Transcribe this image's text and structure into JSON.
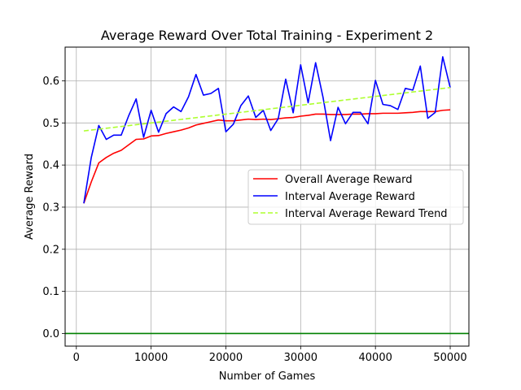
{
  "chart_data": {
    "type": "line",
    "title": "Average Reward Over Total Training - Experiment 2",
    "xlabel": "Number of Games",
    "ylabel": "Average Reward",
    "xlim": [
      -1500,
      52500
    ],
    "ylim": [
      -0.03,
      0.68
    ],
    "xticks": [
      0,
      10000,
      20000,
      30000,
      40000,
      50000
    ],
    "yticks": [
      0.0,
      0.1,
      0.2,
      0.3,
      0.4,
      0.5,
      0.6
    ],
    "xtick_labels": [
      "0",
      "10000",
      "20000",
      "30000",
      "40000",
      "50000"
    ],
    "ytick_labels": [
      "0.0",
      "0.1",
      "0.2",
      "0.3",
      "0.4",
      "0.5",
      "0.6"
    ],
    "grid": true,
    "legend_position": "center-right",
    "horizontal_line": {
      "y": 0.0,
      "color": "#008000"
    },
    "x": [
      1000,
      2000,
      3000,
      4000,
      5000,
      6000,
      7000,
      8000,
      9000,
      10000,
      11000,
      12000,
      13000,
      14000,
      15000,
      16000,
      17000,
      18000,
      19000,
      20000,
      21000,
      22000,
      23000,
      24000,
      25000,
      26000,
      27000,
      28000,
      29000,
      30000,
      31000,
      32000,
      33000,
      34000,
      35000,
      36000,
      37000,
      38000,
      39000,
      40000,
      41000,
      42000,
      43000,
      44000,
      45000,
      46000,
      47000,
      48000,
      49000,
      50000
    ],
    "series": [
      {
        "name": "Overall Average Reward",
        "color": "#ff0000",
        "style": "solid",
        "values": [
          0.309,
          0.36,
          0.405,
          0.418,
          0.428,
          0.435,
          0.448,
          0.461,
          0.462,
          0.469,
          0.47,
          0.475,
          0.479,
          0.483,
          0.488,
          0.495,
          0.499,
          0.503,
          0.507,
          0.505,
          0.505,
          0.507,
          0.509,
          0.508,
          0.509,
          0.508,
          0.51,
          0.512,
          0.513,
          0.516,
          0.518,
          0.521,
          0.521,
          0.52,
          0.52,
          0.52,
          0.521,
          0.521,
          0.522,
          0.522,
          0.523,
          0.523,
          0.523,
          0.524,
          0.525,
          0.527,
          0.527,
          0.527,
          0.53,
          0.531
        ]
      },
      {
        "name": "Interval Average Reward",
        "color": "#0000ff",
        "style": "solid",
        "values": [
          0.309,
          0.418,
          0.494,
          0.461,
          0.471,
          0.471,
          0.517,
          0.557,
          0.466,
          0.53,
          0.478,
          0.522,
          0.538,
          0.527,
          0.562,
          0.615,
          0.566,
          0.57,
          0.582,
          0.479,
          0.497,
          0.541,
          0.564,
          0.513,
          0.53,
          0.482,
          0.51,
          0.604,
          0.524,
          0.638,
          0.548,
          0.643,
          0.56,
          0.458,
          0.537,
          0.498,
          0.525,
          0.525,
          0.498,
          0.601,
          0.544,
          0.541,
          0.532,
          0.582,
          0.578,
          0.635,
          0.511,
          0.525,
          0.657,
          0.584
        ]
      },
      {
        "name": "Interval Average Reward Trend",
        "color": "#adff2f",
        "style": "dashed",
        "x": [
          1000,
          50000
        ],
        "values": [
          0.481,
          0.584
        ]
      }
    ]
  }
}
